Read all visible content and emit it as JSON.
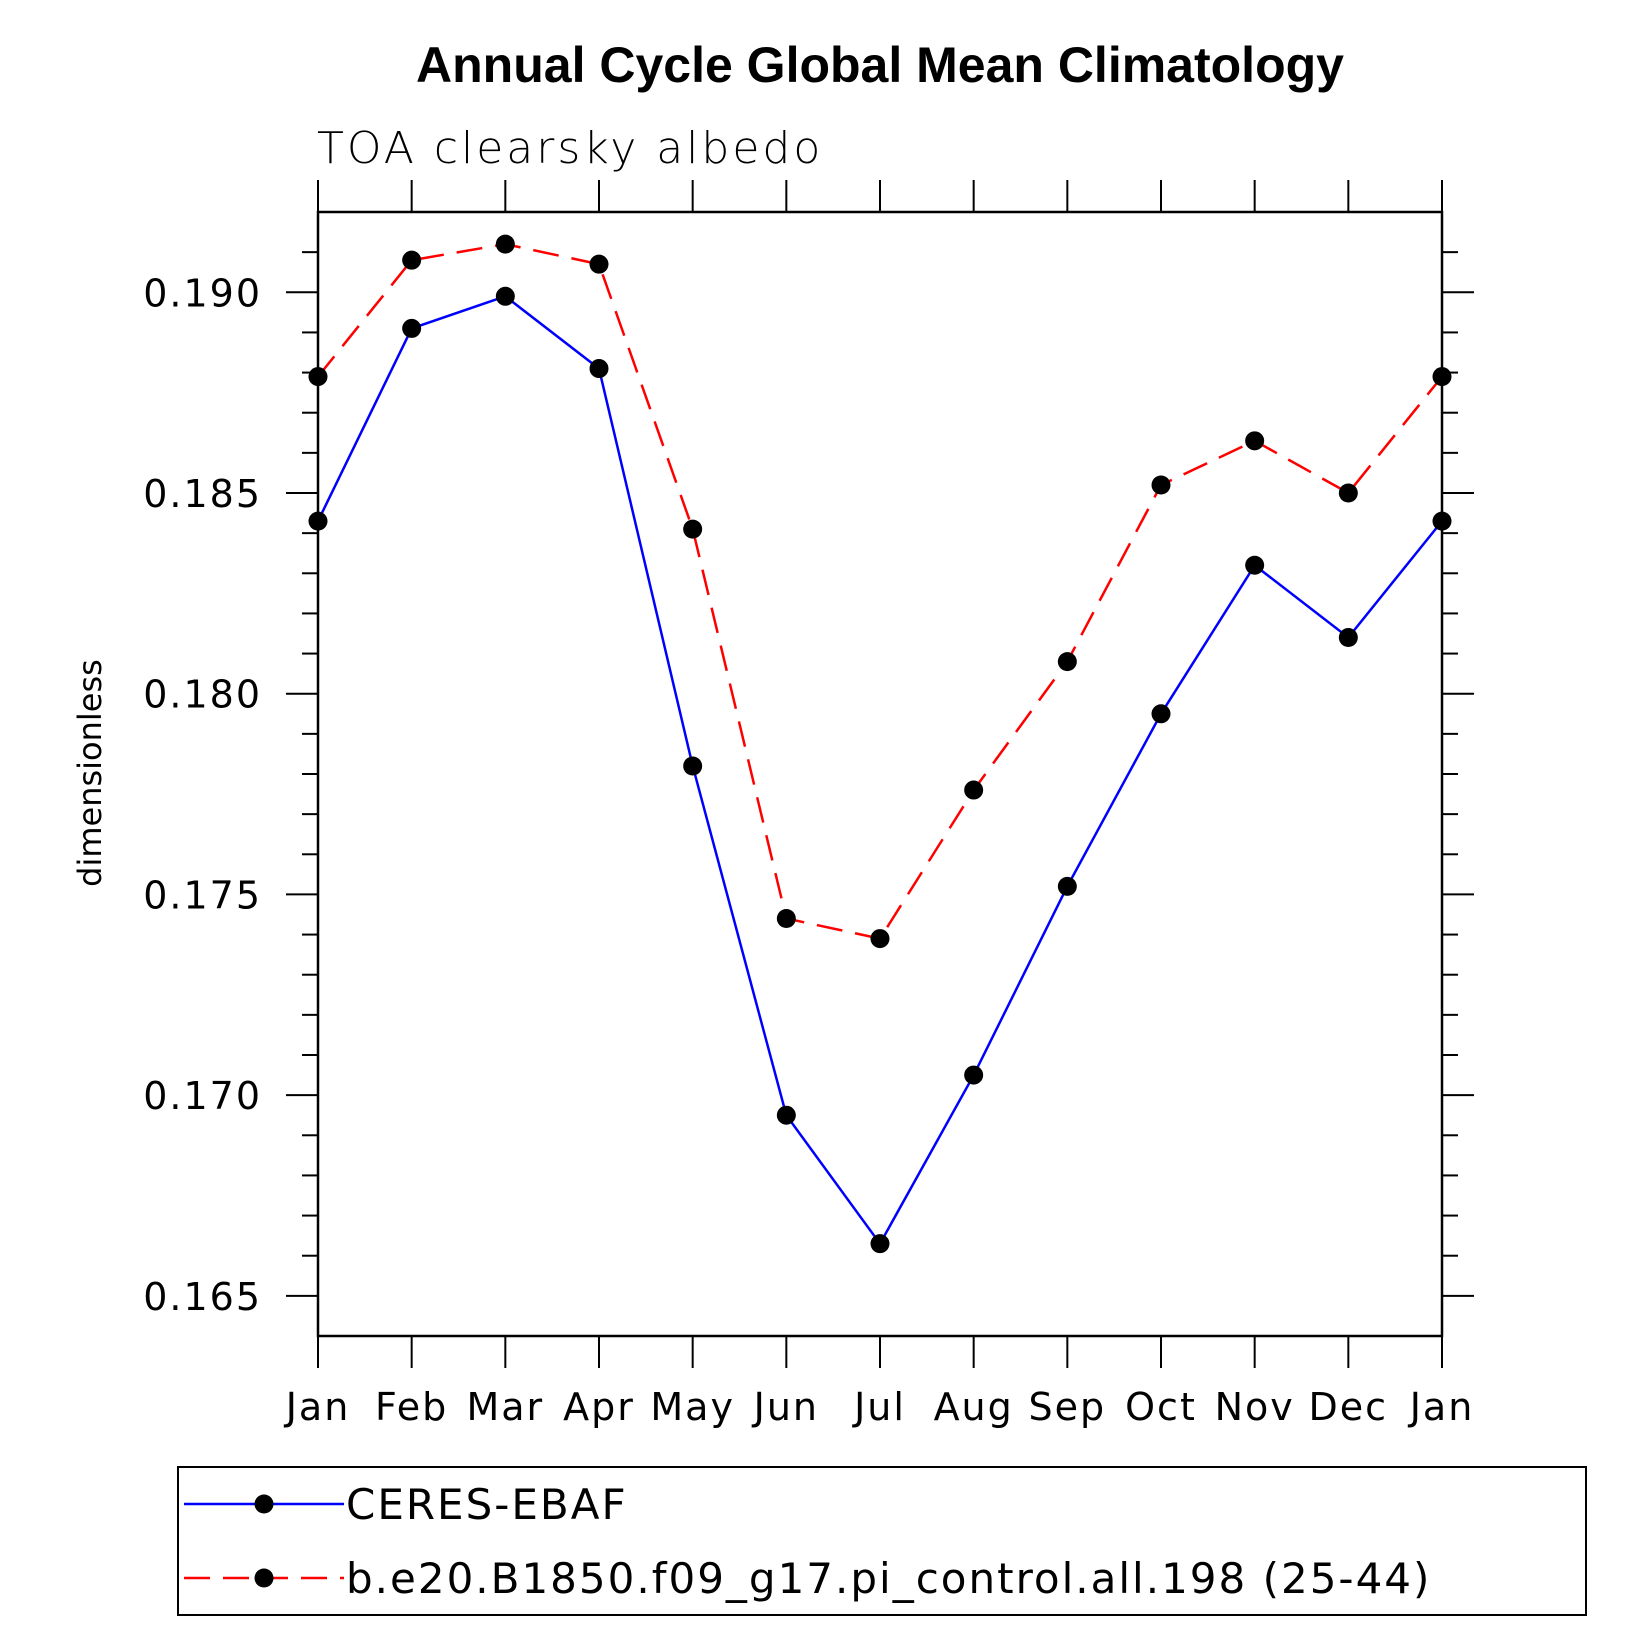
{
  "chart_data": {
    "type": "line",
    "title": "Annual Cycle Global Mean Climatology",
    "subtitle": "TOA clearsky albedo",
    "xlabel": "",
    "ylabel": "dimensionless",
    "categories": [
      "Jan",
      "Feb",
      "Mar",
      "Apr",
      "May",
      "Jun",
      "Jul",
      "Aug",
      "Sep",
      "Oct",
      "Nov",
      "Dec",
      "Jan"
    ],
    "ylim": [
      0.164,
      0.192
    ],
    "yticks": [
      0.165,
      0.17,
      0.175,
      0.18,
      0.185,
      0.19
    ],
    "ytick_labels": [
      "0.165",
      "0.170",
      "0.175",
      "0.180",
      "0.185",
      "0.190"
    ],
    "y_minor_step": 0.001,
    "grid": false,
    "legend_position": "bottom",
    "series": [
      {
        "name": "CERES-EBAF",
        "color": "#0000ff",
        "dash": "solid",
        "values": [
          0.1843,
          0.1891,
          0.1899,
          0.1881,
          0.1782,
          0.1695,
          0.1663,
          0.1705,
          0.1752,
          0.1795,
          0.1832,
          0.1814,
          0.1843
        ]
      },
      {
        "name": "b.e20.B1850.f09_g17.pi_control.all.198 (25-44)",
        "color": "#ff0000",
        "dash": "dashed",
        "values": [
          0.1879,
          0.1908,
          0.1912,
          0.1907,
          0.1841,
          0.1744,
          0.1739,
          0.1776,
          0.1808,
          0.1852,
          0.1863,
          0.185,
          0.1879
        ]
      }
    ]
  }
}
